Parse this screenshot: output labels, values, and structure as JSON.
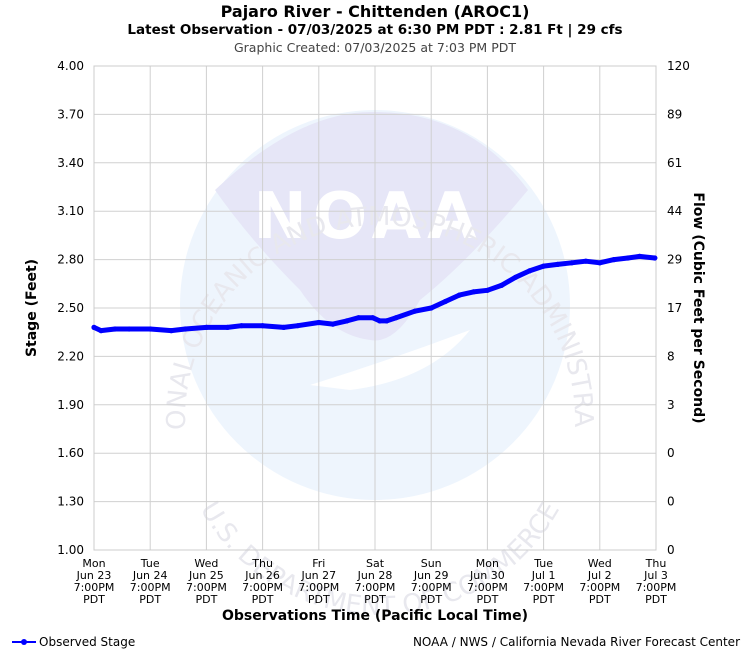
{
  "header": {
    "title": "Pajaro River - Chittenden (AROC1)",
    "subtitle": "Latest Observation - 07/03/2025 at 6:30 PM PDT : 2.81 Ft | 29 cfs",
    "created": "Graphic Created: 07/03/2025 at 7:03 PM PDT"
  },
  "footer": {
    "credit": "NOAA / NWS / California Nevada River Forecast Center"
  },
  "watermark": {
    "logo_text": "NOAA",
    "top_arc": "NATIONAL OCEANIC AND ATMOSPHERIC ADMINISTRATION",
    "bottom_arc": "U.S. DEPARTMENT OF COMMERCE",
    "colors": {
      "dark": "#e6e6f7",
      "light": "#eef5fd"
    }
  },
  "chart_data": {
    "type": "line",
    "xlabel": "Observations Time (Pacific Local Time)",
    "ylabel": "Stage (Feet)",
    "y2label": "Flow (Cubic Feet per Second)",
    "ylim": [
      1.0,
      4.0
    ],
    "yticks": [
      "4.00",
      "3.70",
      "3.40",
      "3.10",
      "2.80",
      "2.50",
      "2.20",
      "1.90",
      "1.60",
      "1.30",
      "1.00"
    ],
    "y2ticks": [
      "120",
      "89",
      "61",
      "44",
      "29",
      "17",
      "8",
      "3",
      "0",
      "0",
      "0"
    ],
    "xticks": [
      [
        "Mon",
        "Jun 23",
        "7:00PM",
        "PDT"
      ],
      [
        "Tue",
        "Jun 24",
        "7:00PM",
        "PDT"
      ],
      [
        "Wed",
        "Jun 25",
        "7:00PM",
        "PDT"
      ],
      [
        "Thu",
        "Jun 26",
        "7:00PM",
        "PDT"
      ],
      [
        "Fri",
        "Jun 27",
        "7:00PM",
        "PDT"
      ],
      [
        "Sat",
        "Jun 28",
        "7:00PM",
        "PDT"
      ],
      [
        "Sun",
        "Jun 29",
        "7:00PM",
        "PDT"
      ],
      [
        "Mon",
        "Jun 30",
        "7:00PM",
        "PDT"
      ],
      [
        "Tue",
        "Jul 1",
        "7:00PM",
        "PDT"
      ],
      [
        "Wed",
        "Jul 2",
        "7:00PM",
        "PDT"
      ],
      [
        "Thu",
        "Jul 3",
        "7:00PM",
        "PDT"
      ]
    ],
    "grid": true,
    "legend_position": "bottom-left",
    "series": [
      {
        "name": "Observed Stage",
        "color": "#0000ff",
        "points": [
          [
            "2025-06-23 19:00",
            2.38
          ],
          [
            "2025-06-23 22:00",
            2.36
          ],
          [
            "2025-06-24 04:00",
            2.37
          ],
          [
            "2025-06-24 10:00",
            2.37
          ],
          [
            "2025-06-24 19:00",
            2.37
          ],
          [
            "2025-06-25 04:00",
            2.36
          ],
          [
            "2025-06-25 10:00",
            2.37
          ],
          [
            "2025-06-25 19:00",
            2.38
          ],
          [
            "2025-06-26 04:00",
            2.38
          ],
          [
            "2025-06-26 10:00",
            2.39
          ],
          [
            "2025-06-26 19:00",
            2.39
          ],
          [
            "2025-06-27 04:00",
            2.38
          ],
          [
            "2025-06-27 10:00",
            2.39
          ],
          [
            "2025-06-27 19:00",
            2.41
          ],
          [
            "2025-06-28 01:00",
            2.4
          ],
          [
            "2025-06-28 07:00",
            2.42
          ],
          [
            "2025-06-28 12:00",
            2.44
          ],
          [
            "2025-06-28 18:00",
            2.44
          ],
          [
            "2025-06-28 21:00",
            2.42
          ],
          [
            "2025-06-29 00:00",
            2.42
          ],
          [
            "2025-06-29 04:00",
            2.44
          ],
          [
            "2025-06-29 12:00",
            2.48
          ],
          [
            "2025-06-29 19:00",
            2.5
          ],
          [
            "2025-06-30 01:00",
            2.54
          ],
          [
            "2025-06-30 07:00",
            2.58
          ],
          [
            "2025-06-30 13:00",
            2.6
          ],
          [
            "2025-06-30 19:00",
            2.61
          ],
          [
            "2025-07-01 01:00",
            2.64
          ],
          [
            "2025-07-01 07:00",
            2.69
          ],
          [
            "2025-07-01 13:00",
            2.73
          ],
          [
            "2025-07-01 19:00",
            2.76
          ],
          [
            "2025-07-02 01:00",
            2.77
          ],
          [
            "2025-07-02 07:00",
            2.78
          ],
          [
            "2025-07-02 13:00",
            2.79
          ],
          [
            "2025-07-02 19:00",
            2.78
          ],
          [
            "2025-07-03 01:00",
            2.8
          ],
          [
            "2025-07-03 07:00",
            2.81
          ],
          [
            "2025-07-03 12:00",
            2.82
          ],
          [
            "2025-07-03 18:30",
            2.81
          ]
        ]
      }
    ]
  }
}
